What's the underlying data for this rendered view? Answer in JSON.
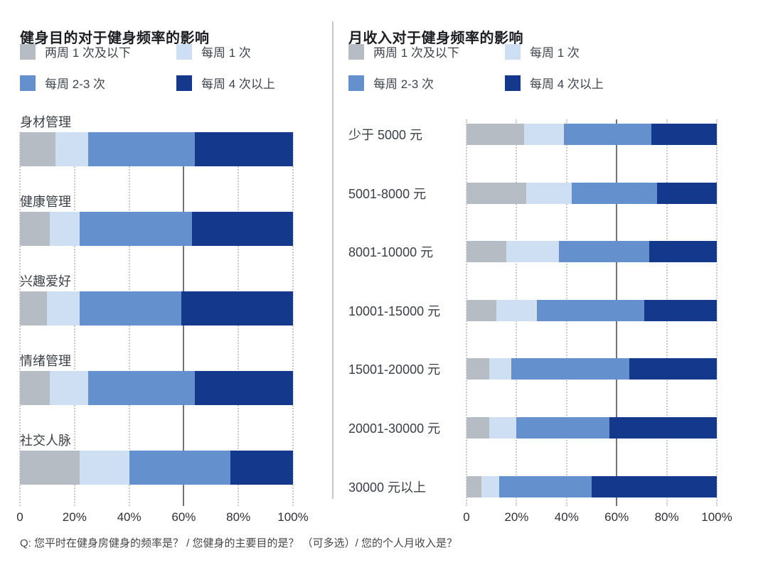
{
  "legend": [
    {
      "name": "biweekly-or-less",
      "label": "两周 1 次及以下",
      "color": "#b6bcc4"
    },
    {
      "name": "once-a-week",
      "label": "每周 1 次",
      "color": "#cfdff3"
    },
    {
      "name": "2-3-times-a-week",
      "label": "每周 2-3 次",
      "color": "#6590ce"
    },
    {
      "name": "4plus-times-a-week",
      "label": "每周 4 次以上",
      "color": "#14398c"
    }
  ],
  "footnote": "Q: 您平时在健身房健身的频率是？ / 您健身的主要目的是？ （可多选）/ 您的个人月收入是？",
  "chart_data": [
    {
      "type": "bar",
      "orientation": "horizontal",
      "stacked": true,
      "title": "健身目的对于健身频率的影响",
      "categories": [
        "身材管理",
        "健康管理",
        "兴趣爱好",
        "情绪管理",
        "社交人脉"
      ],
      "series": [
        {
          "name": "两周 1 次及以下",
          "color": "#b6bcc4",
          "values": [
            13,
            11,
            10,
            11,
            22
          ]
        },
        {
          "name": "每周 1 次",
          "color": "#cfdff3",
          "values": [
            12,
            11,
            12,
            14,
            18
          ]
        },
        {
          "name": "每周 2-3 次",
          "color": "#6590ce",
          "values": [
            39,
            41,
            37,
            39,
            37
          ]
        },
        {
          "name": "每周 4 次以上",
          "color": "#14398c",
          "values": [
            36,
            37,
            41,
            36,
            23
          ]
        }
      ],
      "unit": "%",
      "xlim": [
        0,
        100
      ],
      "x_ticks": [
        "0",
        "20%",
        "40%",
        "60%",
        "80%",
        "100%"
      ],
      "grid": "dotted-vertical, solid line at 60%",
      "legend_position": "top"
    },
    {
      "type": "bar",
      "orientation": "horizontal",
      "stacked": true,
      "title": "月收入对于健身频率的影响",
      "categories": [
        "少于 5000 元",
        "5001-8000 元",
        "8001-10000 元",
        "10001-15000 元",
        "15001-20000 元",
        "20001-30000 元",
        "30000 元以上"
      ],
      "series": [
        {
          "name": "两周 1 次及以下",
          "color": "#b6bcc4",
          "values": [
            23,
            24,
            16,
            12,
            9,
            9,
            6
          ]
        },
        {
          "name": "每周 1 次",
          "color": "#cfdff3",
          "values": [
            16,
            18,
            21,
            16,
            9,
            11,
            7
          ]
        },
        {
          "name": "每周 2-3 次",
          "color": "#6590ce",
          "values": [
            35,
            34,
            36,
            43,
            47,
            37,
            37
          ]
        },
        {
          "name": "每周 4 次以上",
          "color": "#14398c",
          "values": [
            26,
            24,
            27,
            29,
            35,
            43,
            50
          ]
        }
      ],
      "unit": "%",
      "xlim": [
        0,
        100
      ],
      "x_ticks": [
        "0",
        "20%",
        "40%",
        "60%",
        "80%",
        "100%"
      ],
      "grid": "dotted-vertical, solid line at 60%",
      "legend_position": "top"
    }
  ]
}
